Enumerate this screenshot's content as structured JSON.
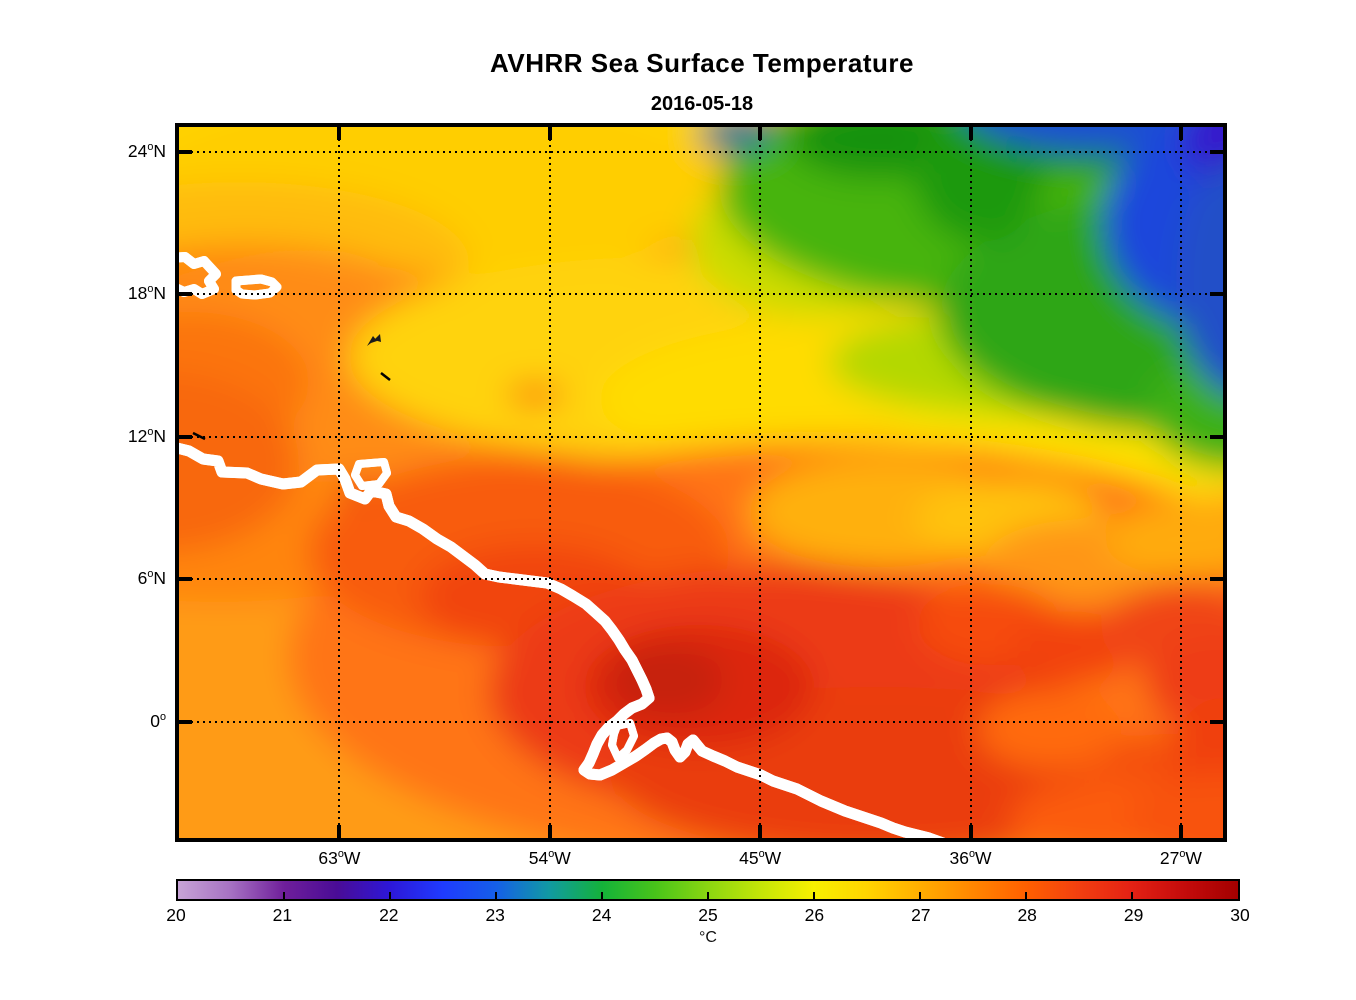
{
  "title": "AVHRR Sea Surface Temperature",
  "subtitle": "2016-05-18",
  "colors": {
    "land": "#828282",
    "coast_halo": "#ffffff",
    "coastline": "#000000",
    "axis": "#000000",
    "background": "#ffffff"
  },
  "chart_data": {
    "type": "heatmap",
    "title": "AVHRR Sea Surface Temperature",
    "date": "2016-05-18",
    "projection": "equirectangular lat/lon map",
    "lon_left_deg_w": 69.86,
    "lon_right_deg_w": 25.2,
    "lat_top_deg_n": 25.05,
    "lat_bottom_deg_n": -4.9,
    "grid_style": "dotted",
    "lon_gridlines": [
      {
        "deg": 63,
        "label": "63",
        "hemi": "W"
      },
      {
        "deg": 54,
        "label": "54",
        "hemi": "W"
      },
      {
        "deg": 45,
        "label": "45",
        "hemi": "W"
      },
      {
        "deg": 36,
        "label": "36",
        "hemi": "W"
      },
      {
        "deg": 27,
        "label": "27",
        "hemi": "W"
      }
    ],
    "lat_gridlines": [
      {
        "deg": 24,
        "label": "24",
        "hemi": "N"
      },
      {
        "deg": 18,
        "label": "18",
        "hemi": "N"
      },
      {
        "deg": 12,
        "label": "12",
        "hemi": "N"
      },
      {
        "deg": 6,
        "label": "6",
        "hemi": "N"
      },
      {
        "deg": 0,
        "label": "0",
        "hemi": ""
      }
    ],
    "colorbar": {
      "min": 20,
      "max": 30,
      "unit": "°C",
      "orientation": "horizontal",
      "tick_values": [
        20,
        21,
        22,
        23,
        24,
        25,
        26,
        27,
        28,
        29,
        30
      ],
      "stops": [
        [
          20.0,
          "#c7a3d6"
        ],
        [
          20.5,
          "#a671c2"
        ],
        [
          21.0,
          "#6f1f9b"
        ],
        [
          21.5,
          "#4a0c96"
        ],
        [
          22.0,
          "#2d17d8"
        ],
        [
          22.5,
          "#1f3bff"
        ],
        [
          23.0,
          "#155fe8"
        ],
        [
          23.5,
          "#119aa2"
        ],
        [
          24.0,
          "#14b23a"
        ],
        [
          24.5,
          "#48c41a"
        ],
        [
          25.0,
          "#8bd611"
        ],
        [
          25.5,
          "#c5e607"
        ],
        [
          26.0,
          "#f8f000"
        ],
        [
          26.5,
          "#ffd400"
        ],
        [
          27.0,
          "#ffae00"
        ],
        [
          27.5,
          "#ff8600"
        ],
        [
          28.0,
          "#ff6000"
        ],
        [
          28.5,
          "#f23f10"
        ],
        [
          29.0,
          "#e42114"
        ],
        [
          29.5,
          "#c40b0b"
        ],
        [
          30.0,
          "#a30000"
        ]
      ]
    },
    "land_features": [
      "South America coast (Venezuela, Guianas, NE Brazil) in bottom-left",
      "Amazon river mouth estuary with island",
      "Hispaniola east tip at left edge near 18N",
      "Puerto Rico",
      "Trinidad",
      "small Lesser Antilles islets"
    ],
    "approx_sst_grid_c": {
      "lats_n": [
        24,
        18,
        12,
        6,
        0
      ],
      "lons_w": [
        63,
        54,
        45,
        36,
        27
      ],
      "values": [
        [
          26.2,
          25.0,
          24.3,
          23.6,
          22.3
        ],
        [
          27.3,
          26.4,
          25.8,
          24.7,
          23.2
        ],
        [
          27.7,
          27.2,
          26.6,
          26.1,
          25.4
        ],
        [
          null,
          27.8,
          27.3,
          27.1,
          26.9
        ],
        [
          null,
          null,
          28.6,
          28.1,
          27.6
        ]
      ],
      "note": "values estimated from pixel colors; null = land"
    }
  }
}
